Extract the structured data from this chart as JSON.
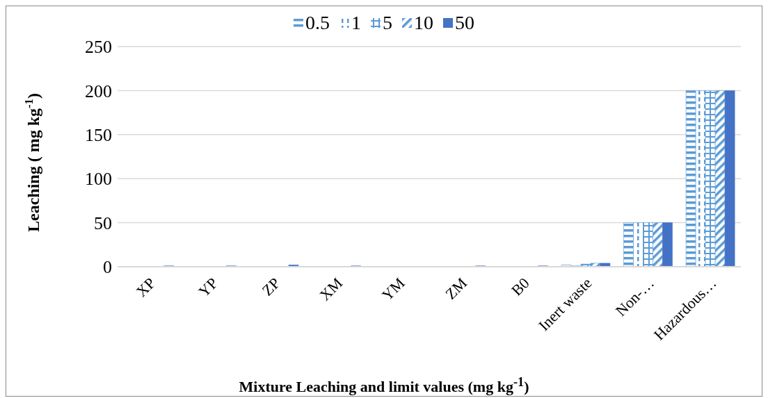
{
  "chart_data": {
    "type": "bar",
    "xlabel": "Mixture Leaching and limit values (mg kg$^{-1}$)",
    "ylabel": "Leaching ( mg kg$^{-1}$)",
    "categories": [
      "XP",
      "YP",
      "ZP",
      "XM",
      "YM",
      "ZM",
      "B0",
      "Inert waste",
      "Non-…",
      "Hazardous…"
    ],
    "series": [
      {
        "name": "0.5",
        "color": "#5b9bd5",
        "values": [
          0,
          0,
          0,
          0,
          0,
          0,
          0,
          2,
          50,
          200
        ]
      },
      {
        "name": "1",
        "color": "#5b9bd5",
        "values": [
          0,
          0,
          0,
          0,
          0,
          0,
          0,
          1,
          50,
          200
        ]
      },
      {
        "name": "5",
        "color": "#5b9bd5",
        "values": [
          0,
          0,
          0,
          0,
          0,
          0,
          0,
          3,
          50,
          200
        ]
      },
      {
        "name": "10",
        "color": "#5b9bd5",
        "values": [
          0,
          0,
          0,
          0,
          0,
          0,
          0,
          4,
          50,
          200
        ]
      },
      {
        "name": "50",
        "color": "#4472c4",
        "values": [
          1,
          1,
          2,
          1,
          0,
          1,
          1,
          4,
          50,
          200
        ]
      }
    ],
    "ylim": [
      0,
      250
    ],
    "yticks": [
      0,
      50,
      100,
      150,
      200,
      250
    ],
    "grid": "y",
    "legend": "top"
  }
}
